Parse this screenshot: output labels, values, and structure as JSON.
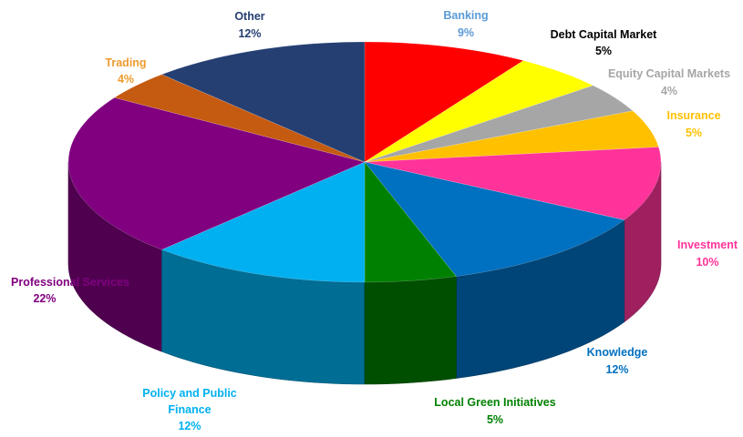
{
  "chart_data": {
    "type": "pie",
    "title": "",
    "slices": [
      {
        "label": "Banking",
        "value": 9,
        "pct_label": "9%",
        "color": "#ff0000",
        "label_color": "#5b9bd5"
      },
      {
        "label": "Debt Capital Market",
        "value": 5,
        "pct_label": "5%",
        "color": "#ffff00",
        "label_color": "#000000"
      },
      {
        "label": "Equity Capital Markets",
        "value": 4,
        "pct_label": "4%",
        "color": "#a6a6a6",
        "label_color": "#a6a6a6"
      },
      {
        "label": "Insurance",
        "value": 5,
        "pct_label": "5%",
        "color": "#ffc000",
        "label_color": "#ffc000"
      },
      {
        "label": "Investment",
        "value": 10,
        "pct_label": "10%",
        "color": "#ff3399",
        "label_color": "#ff3399"
      },
      {
        "label": "Knowledge",
        "value": 12,
        "pct_label": "12%",
        "color": "#0070c0",
        "label_color": "#0070c0"
      },
      {
        "label": "Local Green Initiatives",
        "value": 5,
        "pct_label": "5%",
        "color": "#008000",
        "label_color": "#008000"
      },
      {
        "label": "Policy and Public Finance",
        "value": 12,
        "pct_label": "12%",
        "color": "#00b0f0",
        "label_color": "#00b0f0"
      },
      {
        "label": "Professional Services",
        "value": 22,
        "pct_label": "22%",
        "color": "#800080",
        "label_color": "#800080"
      },
      {
        "label": "Trading",
        "value": 4,
        "pct_label": "4%",
        "color": "#c55a11",
        "label_color": "#ed9b2f"
      },
      {
        "label": "Other",
        "value": 12,
        "pct_label": "12%",
        "color": "#253f72",
        "label_color": "#253f72"
      }
    ]
  }
}
